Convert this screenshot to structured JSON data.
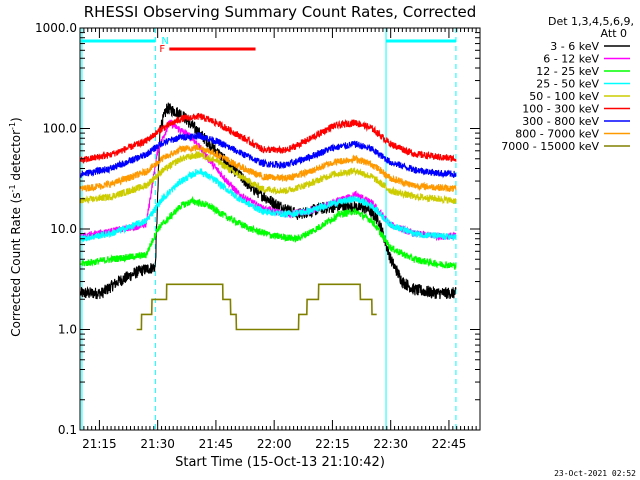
{
  "chart_data": {
    "type": "line",
    "title": "RHESSI Observing Summary Count Rates, Corrected",
    "xlabel": "Start Time (15-Oct-13 21:10:42)",
    "ylabel_main": "Corrected Count Rate (s",
    "ylabel_sup1": "-1",
    "ylabel_mid": " detector",
    "ylabel_sup2": "-1",
    "ylabel_end": ")",
    "y_scale": "log",
    "ylim": [
      0.1,
      1000
    ],
    "xlim_minutes": [
      21.1667,
      22.8833
    ],
    "y_tick_labels": [
      "0.1",
      "1.0",
      "10.0",
      "100.0",
      "1000.0"
    ],
    "y_tick_values": [
      0.1,
      1,
      10,
      100,
      1000
    ],
    "x_tick_labels": [
      "21:15",
      "21:30",
      "21:45",
      "22:00",
      "22:15",
      "22:30",
      "22:45"
    ],
    "x_tick_values": [
      21.25,
      21.5,
      21.75,
      22.0,
      22.25,
      22.5,
      22.75
    ],
    "legend": {
      "header1": "Det 1,3,4,5,6,9,",
      "header2": "Att 0",
      "placement": "right"
    },
    "annotations": {
      "flare_label": "F",
      "night_label": "N",
      "flare_interval": [
        21.55,
        21.92
      ],
      "night_intervals": [
        [
          21.17,
          21.49
        ],
        [
          22.48,
          22.78
        ]
      ],
      "saa_boundaries": [
        21.49,
        22.78
      ],
      "night_boundaries": [
        21.175,
        22.48
      ]
    },
    "series": [
      {
        "name": "3 - 6 keV",
        "color": "#000000",
        "x": [
          21.17,
          21.26,
          21.33,
          21.42,
          21.49,
          21.51,
          21.54,
          21.6,
          21.7,
          21.8,
          21.9,
          22.0,
          22.1,
          22.2,
          22.3,
          22.4,
          22.45,
          22.5,
          22.55,
          22.6,
          22.7,
          22.78
        ],
        "y": [
          2.3,
          2.3,
          3.0,
          3.8,
          4.2,
          100,
          160,
          140,
          80,
          45,
          26,
          18,
          14,
          16,
          17,
          16,
          12,
          5,
          3,
          2.5,
          2.3,
          2.3
        ]
      },
      {
        "name": "6 - 12 keV",
        "color": "#ff00ff",
        "x": [
          21.17,
          21.3,
          21.45,
          21.5,
          21.55,
          21.65,
          21.75,
          21.85,
          21.95,
          22.05,
          22.15,
          22.25,
          22.35,
          22.42,
          22.5,
          22.6,
          22.7,
          22.78
        ],
        "y": [
          8.5,
          9.5,
          11,
          60,
          115,
          80,
          40,
          22,
          16,
          14,
          15,
          18,
          22,
          18,
          11,
          9,
          8.5,
          8.5
        ]
      },
      {
        "name": "12 - 25 keV",
        "color": "#00ff00",
        "x": [
          21.17,
          21.3,
          21.45,
          21.5,
          21.55,
          21.6,
          21.65,
          21.72,
          21.8,
          21.9,
          22.0,
          22.1,
          22.18,
          22.28,
          22.35,
          22.42,
          22.5,
          22.6,
          22.7,
          22.78
        ],
        "y": [
          4.5,
          5.0,
          5.5,
          10,
          13,
          17,
          19,
          17,
          13,
          10,
          8.5,
          8.0,
          10,
          14,
          15,
          12,
          6.5,
          5.0,
          4.5,
          4.3
        ]
      },
      {
        "name": "25 - 50 keV",
        "color": "#00ffff",
        "x": [
          21.17,
          21.3,
          21.45,
          21.52,
          21.6,
          21.68,
          21.75,
          21.85,
          21.95,
          22.05,
          22.15,
          22.25,
          22.35,
          22.42,
          22.5,
          22.6,
          22.7,
          22.78
        ],
        "y": [
          8.0,
          9.0,
          12,
          20,
          30,
          38,
          30,
          20,
          15,
          14,
          15,
          18,
          20,
          17,
          11,
          9,
          8.5,
          8.3
        ]
      },
      {
        "name": "50 - 100 keV",
        "color": "#cccc00",
        "x": [
          21.17,
          21.3,
          21.45,
          21.52,
          21.6,
          21.68,
          21.75,
          21.85,
          21.95,
          22.05,
          22.15,
          22.25,
          22.35,
          22.42,
          22.5,
          22.6,
          22.7,
          22.78
        ],
        "y": [
          19,
          21,
          27,
          38,
          50,
          55,
          48,
          34,
          25,
          24,
          28,
          35,
          38,
          33,
          24,
          21,
          20,
          19
        ]
      },
      {
        "name": "100 - 300 keV",
        "color": "#ff0000",
        "x": [
          21.17,
          21.3,
          21.45,
          21.52,
          21.6,
          21.68,
          21.75,
          21.85,
          21.95,
          22.05,
          22.15,
          22.25,
          22.35,
          22.42,
          22.5,
          22.6,
          22.7,
          22.78
        ],
        "y": [
          48,
          55,
          75,
          100,
          125,
          132,
          115,
          85,
          62,
          60,
          78,
          105,
          115,
          100,
          70,
          56,
          52,
          50
        ]
      },
      {
        "name": "300 - 800 keV",
        "color": "#0000ff",
        "x": [
          21.17,
          21.3,
          21.45,
          21.52,
          21.6,
          21.68,
          21.75,
          21.85,
          21.95,
          22.05,
          22.15,
          22.25,
          22.35,
          22.42,
          22.5,
          22.6,
          22.7,
          22.78
        ],
        "y": [
          35,
          40,
          55,
          72,
          82,
          85,
          75,
          58,
          45,
          43,
          52,
          64,
          70,
          62,
          46,
          39,
          36,
          35
        ]
      },
      {
        "name": "800 - 7000 keV",
        "color": "#ff9900",
        "x": [
          21.17,
          21.3,
          21.45,
          21.52,
          21.6,
          21.68,
          21.75,
          21.85,
          21.95,
          22.05,
          22.15,
          22.25,
          22.35,
          22.42,
          22.5,
          22.6,
          22.7,
          22.78
        ],
        "y": [
          25,
          28,
          37,
          50,
          62,
          65,
          56,
          42,
          33,
          32,
          37,
          46,
          50,
          44,
          32,
          27,
          26,
          25
        ]
      },
      {
        "name": "7000 - 15000 keV",
        "color": "#808000",
        "x": [
          21.41,
          21.45,
          21.5,
          21.55,
          21.6,
          21.65,
          21.7,
          21.75,
          21.8,
          21.85,
          22.08,
          22.12,
          22.16,
          22.2,
          22.24,
          22.28,
          22.32,
          22.36,
          22.4,
          22.44
        ],
        "y": [
          1.0,
          1.4,
          2.0,
          2.5,
          3.0,
          3.0,
          2.5,
          3.0,
          2.0,
          1.0,
          0.9,
          1.4,
          2.0,
          2.5,
          3.0,
          2.5,
          3.0,
          2.5,
          2.0,
          1.4
        ]
      }
    ],
    "footer_date": "23-Oct-2021 02:52",
    "colors": {
      "background": "#ffffff",
      "axes": "#000000",
      "night_marker": "#00ffff",
      "flare_marker": "#ff0000"
    }
  }
}
